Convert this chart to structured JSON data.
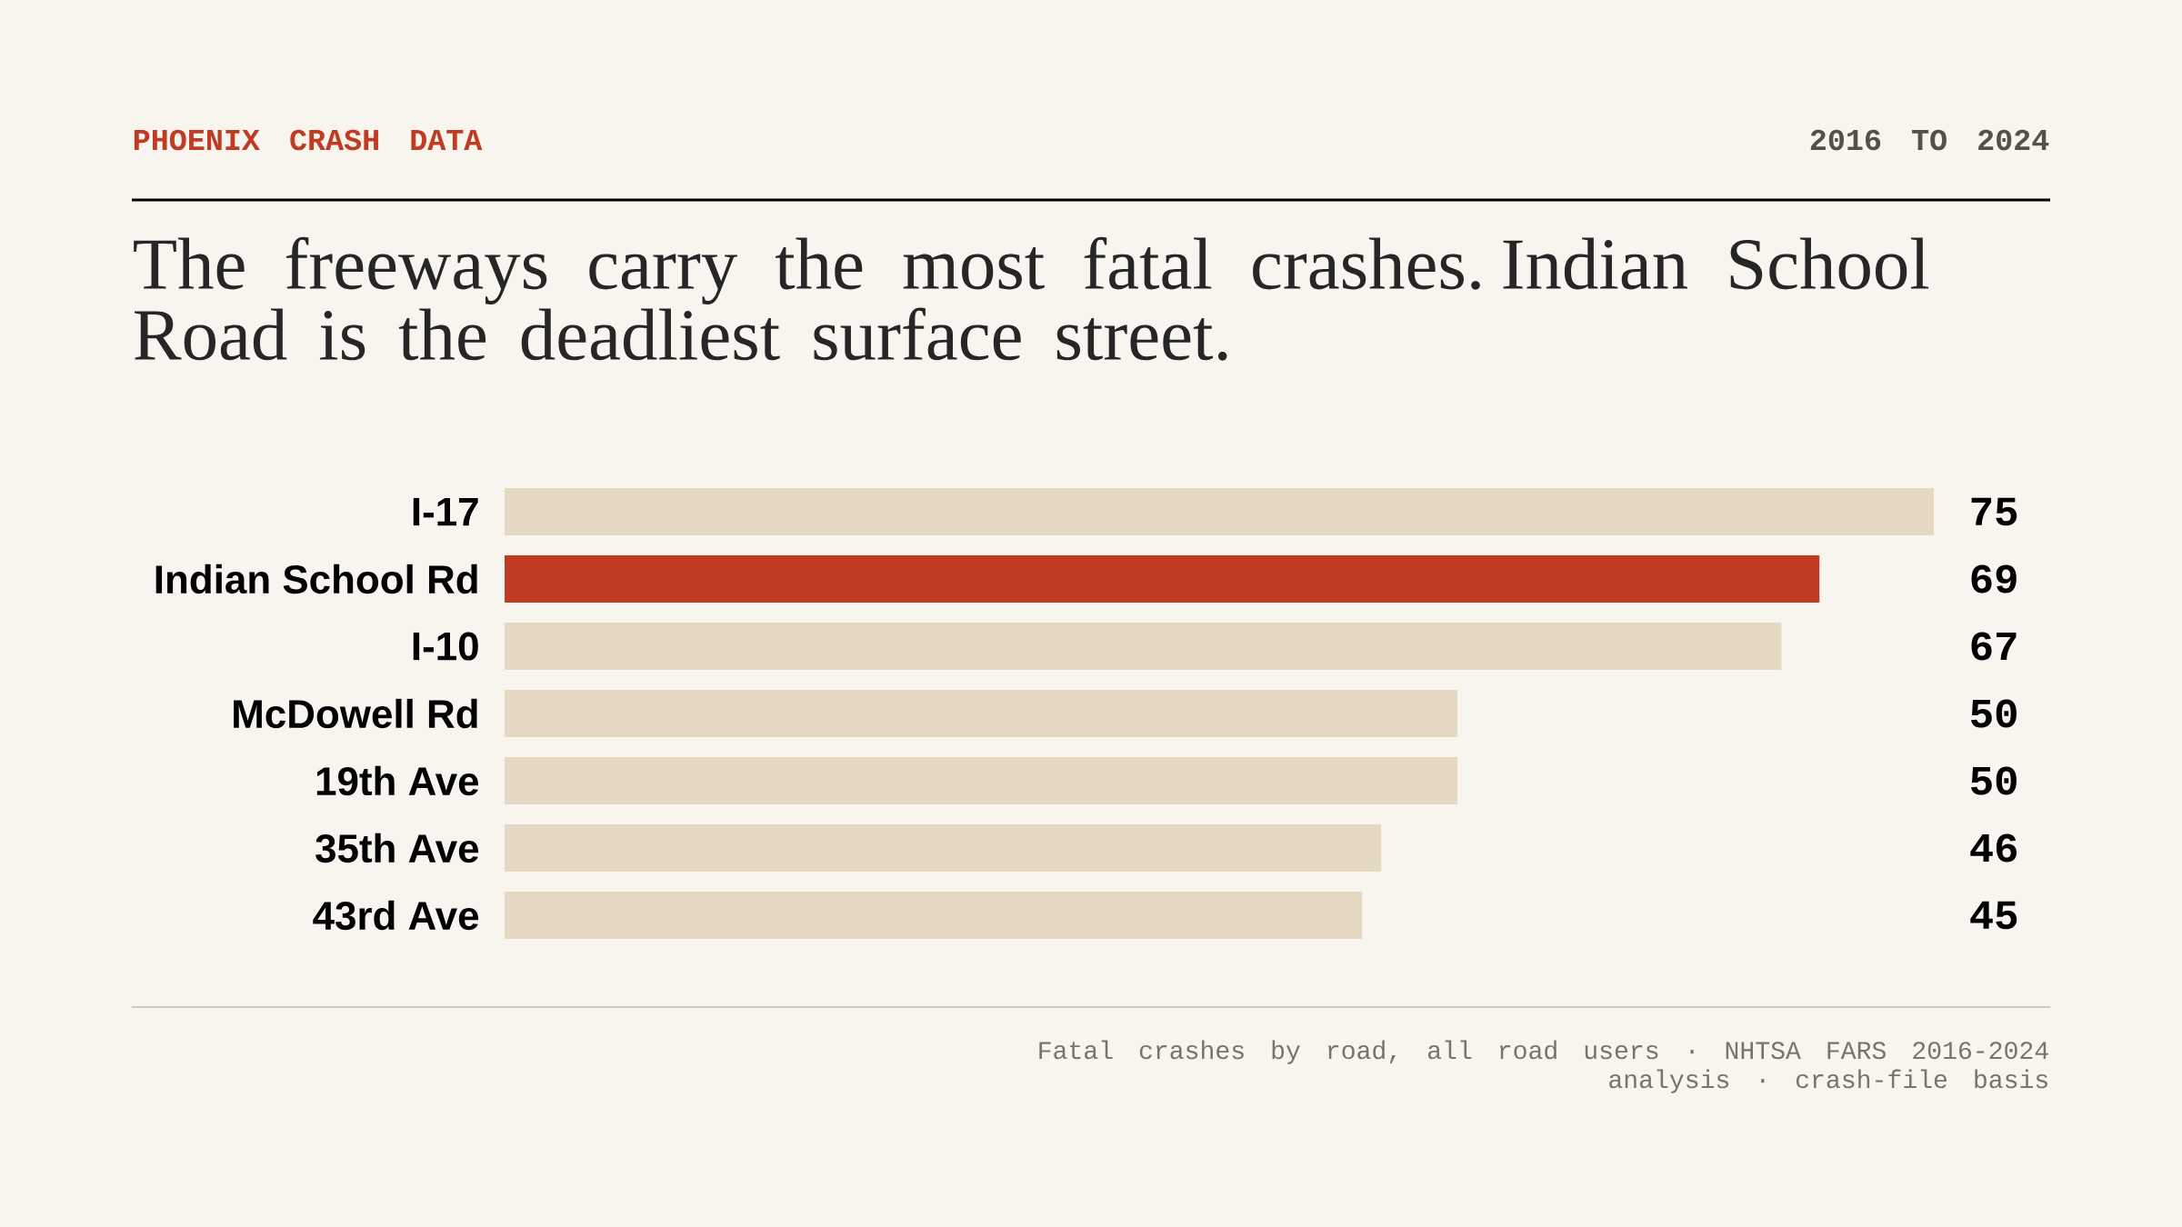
{
  "chart_data": {
    "type": "bar",
    "orientation": "horizontal",
    "title": "The freeways carry the most fatal crashes. Indian School Road is the deadliest surface street.",
    "categories": [
      "I-17",
      "Indian School Rd",
      "I-10",
      "McDowell Rd",
      "19th Ave",
      "35th Ave",
      "43rd Ave"
    ],
    "values": [
      75,
      69,
      67,
      50,
      50,
      46,
      45
    ],
    "colors": [
      "#e6d9c3",
      "#c13a22",
      "#e6d9c3",
      "#e6d9c3",
      "#e6d9c3",
      "#e6d9c3",
      "#e6d9c3"
    ],
    "data_labels": true,
    "annotations": [
      "PHOENIX CRASH DATA",
      "2016 TO 2024",
      "Fatal crashes by road, all road users · NHTSA FARS 2016-2024",
      "analysis · crash-file basis"
    ]
  }
}
